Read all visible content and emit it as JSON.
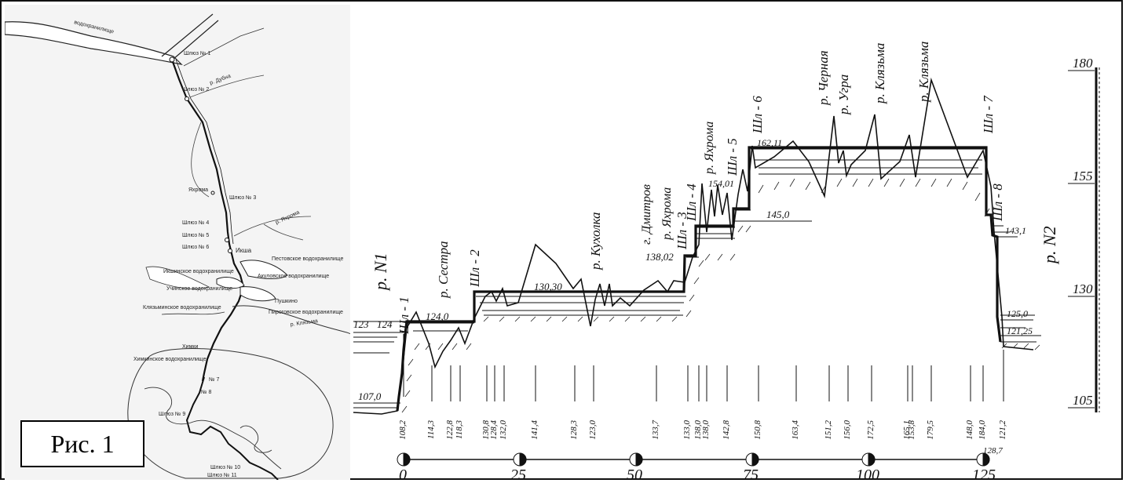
{
  "figure_label": "Рис. 1",
  "map": {
    "labels": {
      "reservoir_top": "водохранилище",
      "lock_1": "Шлюз № 1",
      "river_dubna": "р. Дубна",
      "lock_2": "Шлюз № 2",
      "yakhroma": "Яхрома",
      "lock_3": "Шлюз № 3",
      "lock_4": "Шлюз № 4",
      "river_yakhroma": "р. Яхрома",
      "lock_5": "Шлюз № 5",
      "lock_6": "Шлюз № 6",
      "ikshа": "Икша",
      "pestovskoe": "Пестовское водохранилище",
      "ikshinskoe": "Икшинское водохранилище",
      "akulovskoe": "Акуловское водохранилище",
      "uchinskoe": "Учинское водохранилище",
      "pushkino": "Пушкино",
      "klyazminskoe": "Клязьминское водохранилище",
      "pirogovskoe": "Пироговское водохранилище",
      "river_klyazma": "р. Клязьма",
      "khimki": "Химки",
      "khimkinskoe": "Химкинское водохранилище",
      "lock_7": "№ 7",
      "lock_8": "№ 8",
      "lock_9": "Шлюз № 9",
      "lock_10": "Шлюз № 10",
      "lock_11": "Шлюз № 11"
    }
  },
  "profile": {
    "elevation_scale": [
      "180",
      "155",
      "130",
      "105"
    ],
    "rivers_top": [
      "р. Черная",
      "р. Угра",
      "р. Клязьма",
      "р. Клязьма"
    ],
    "rivers_mid": [
      "р. Сестра",
      "р. Кухолка",
      "г. Дмитров",
      "р. Яхрома",
      "р. Яхрома"
    ],
    "endpoints": {
      "left": "р. N1",
      "right": "р. N2"
    },
    "locks": [
      "Шл - 1",
      "Шл - 2",
      "Шл - 3",
      "Шл - 4",
      "Шл - 5",
      "Шл - 6",
      "Шл - 7",
      "Шл - 8"
    ],
    "water_levels": [
      "123",
      "124",
      "124,0",
      "130,30",
      "138,02",
      "154,01",
      "162,11",
      "145,0",
      "143,1",
      "125,0",
      "121,25",
      "107,0"
    ],
    "ground_marks": [
      "108,2",
      "114,3",
      "122,8",
      "118,3",
      "130,8",
      "128,4",
      "132,0",
      "141,4",
      "128,3",
      "123,0",
      "133,7",
      "133,0",
      "138,0",
      "138,0",
      "142,8",
      "150,8",
      "163,4",
      "151,2",
      "156,0",
      "172,5",
      "165,1",
      "153,8",
      "179,5",
      "148,0",
      "184,0",
      "121,2",
      "128,7"
    ],
    "km_labels": [
      "0",
      "25",
      "50",
      "75",
      "100",
      "125"
    ]
  }
}
